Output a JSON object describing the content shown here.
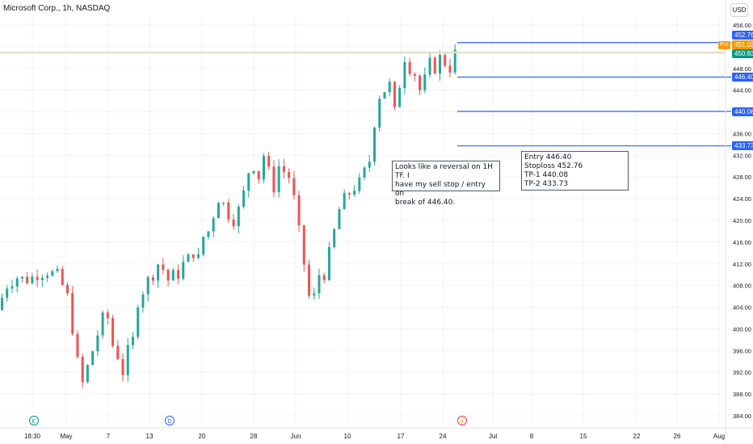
{
  "header": {
    "title": "Microsoft Corp., 1h, NASDAQ",
    "currency": "USD"
  },
  "colors": {
    "up": "#26a69a",
    "down": "#ef5350",
    "line": "#2962ff",
    "axis_text": "#131722",
    "grid": "#f0f3fa",
    "pre": "#ff9800",
    "last": "#089981"
  },
  "notes": {
    "analysis": "Looks like a reversal on 1H TF. I\nhave my sell stop / entry on\nbreak of 446.40.",
    "levels": "Entry 446.40\nStoploss 452.76\nTP-1 440.08\nTP-2 433.73"
  },
  "price_tags": {
    "stoploss": "452.76",
    "pre_label": "Pre",
    "pre_price": "451.02",
    "last_price": "450.83",
    "entry": "446.40",
    "tp1": "440.08",
    "tp2": "433.73"
  },
  "events": {
    "earnings": "E",
    "dividend": "D",
    "split": "⚡"
  },
  "chart_data": {
    "type": "candlestick",
    "title": "Microsoft Corp., 1h, NASDAQ",
    "ylim": [
      384,
      456
    ],
    "y_ticks": [
      384,
      388,
      392,
      396,
      400,
      404,
      408,
      412,
      416,
      420,
      424,
      428,
      432,
      436,
      440,
      444,
      448,
      452,
      456
    ],
    "x_tick_labels": [
      "18:30",
      "May",
      "7",
      "13",
      "20",
      "28",
      "Jun",
      "10",
      "17",
      "24",
      "Jul",
      "8",
      "15",
      "22",
      "26",
      "Aug"
    ],
    "horizontal_levels": [
      {
        "name": "Stoploss",
        "value": 452.76
      },
      {
        "name": "Entry",
        "value": 446.4
      },
      {
        "name": "TP-1",
        "value": 440.08
      },
      {
        "name": "TP-2",
        "value": 433.73
      }
    ],
    "last_price": 450.83,
    "pre_market_price": 451.02,
    "price_path": [
      [
        0,
        403.5
      ],
      [
        2,
        408
      ],
      [
        4,
        409.5
      ],
      [
        6,
        409
      ],
      [
        8,
        410
      ],
      [
        10,
        410.5
      ],
      [
        12,
        410
      ],
      [
        14,
        406
      ],
      [
        15,
        400
      ],
      [
        16,
        394
      ],
      [
        17,
        390
      ],
      [
        18,
        393
      ],
      [
        19,
        396
      ],
      [
        20,
        399
      ],
      [
        21,
        402
      ],
      [
        22,
        402
      ],
      [
        23,
        397
      ],
      [
        24,
        395
      ],
      [
        25,
        392
      ],
      [
        26,
        396
      ],
      [
        27,
        398
      ],
      [
        28,
        405
      ],
      [
        29,
        407
      ],
      [
        30,
        409
      ],
      [
        31,
        410
      ],
      [
        32,
        412
      ],
      [
        33,
        411
      ],
      [
        34,
        409
      ],
      [
        35,
        410
      ],
      [
        36,
        410
      ],
      [
        37,
        412
      ],
      [
        38,
        413
      ],
      [
        39,
        414
      ],
      [
        40,
        413
      ],
      [
        41,
        417
      ],
      [
        42,
        418
      ],
      [
        43,
        421
      ],
      [
        44,
        424
      ],
      [
        45,
        423
      ],
      [
        46,
        421
      ],
      [
        47,
        420
      ],
      [
        48,
        422
      ],
      [
        49,
        425
      ],
      [
        50,
        429
      ],
      [
        51,
        430
      ],
      [
        52,
        428
      ],
      [
        53,
        432
      ],
      [
        54,
        429
      ],
      [
        55,
        426
      ],
      [
        56,
        430
      ],
      [
        57,
        429
      ],
      [
        58,
        428
      ],
      [
        59,
        424
      ],
      [
        60,
        418
      ],
      [
        61,
        412
      ],
      [
        62,
        406
      ],
      [
        63,
        406
      ],
      [
        64,
        410
      ],
      [
        65,
        410
      ],
      [
        66,
        414
      ],
      [
        67,
        418
      ],
      [
        68,
        422
      ],
      [
        69,
        424
      ],
      [
        70,
        425
      ],
      [
        71,
        426
      ],
      [
        72,
        427
      ],
      [
        73,
        429
      ],
      [
        74,
        431
      ],
      [
        75,
        438
      ],
      [
        76,
        443
      ],
      [
        77,
        444
      ],
      [
        78,
        445
      ],
      [
        79,
        440
      ],
      [
        80,
        445
      ],
      [
        81,
        450
      ],
      [
        82,
        448
      ],
      [
        83,
        447
      ],
      [
        84,
        444
      ],
      [
        85,
        446
      ],
      [
        86,
        449
      ],
      [
        87,
        448
      ],
      [
        88,
        450
      ],
      [
        89,
        449
      ],
      [
        90,
        448
      ],
      [
        91,
        450.83
      ]
    ]
  }
}
